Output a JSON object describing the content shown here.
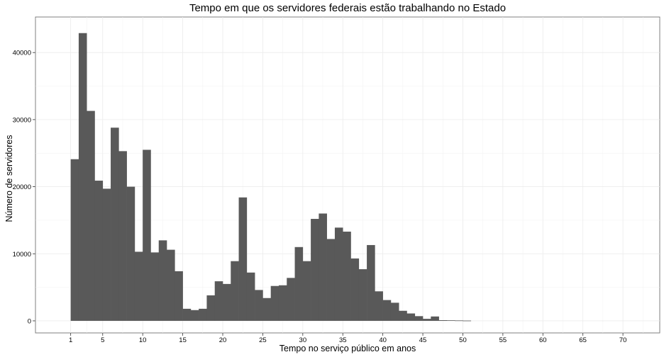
{
  "chart_data": {
    "type": "bar",
    "title": "Tempo em que os servidores federais estão trabalhando no Estado",
    "xlabel": "Tempo no serviço público em anos",
    "ylabel": "Número de servidores",
    "xlim": [
      -3.4,
      74.6
    ],
    "ylim": [
      -1800,
      45300
    ],
    "bin_width": 1,
    "x_ticks": [
      1,
      5,
      10,
      15,
      20,
      25,
      30,
      35,
      40,
      45,
      50,
      55,
      60,
      65,
      70
    ],
    "y_ticks": [
      0,
      10000,
      20000,
      30000,
      40000
    ],
    "grid": true,
    "bins": [
      {
        "x": 1,
        "y": 24100
      },
      {
        "x": 2,
        "y": 42900
      },
      {
        "x": 3,
        "y": 31300
      },
      {
        "x": 4,
        "y": 20900
      },
      {
        "x": 5,
        "y": 19700
      },
      {
        "x": 6,
        "y": 28800
      },
      {
        "x": 7,
        "y": 25300
      },
      {
        "x": 8,
        "y": 20000
      },
      {
        "x": 9,
        "y": 10300
      },
      {
        "x": 10,
        "y": 25500
      },
      {
        "x": 11,
        "y": 10200
      },
      {
        "x": 12,
        "y": 12000
      },
      {
        "x": 13,
        "y": 10600
      },
      {
        "x": 14,
        "y": 7400
      },
      {
        "x": 15,
        "y": 1800
      },
      {
        "x": 16,
        "y": 1600
      },
      {
        "x": 17,
        "y": 1800
      },
      {
        "x": 18,
        "y": 3800
      },
      {
        "x": 19,
        "y": 5900
      },
      {
        "x": 20,
        "y": 5500
      },
      {
        "x": 21,
        "y": 8900
      },
      {
        "x": 22,
        "y": 18400
      },
      {
        "x": 23,
        "y": 7200
      },
      {
        "x": 24,
        "y": 4600
      },
      {
        "x": 25,
        "y": 3400
      },
      {
        "x": 26,
        "y": 5200
      },
      {
        "x": 27,
        "y": 5300
      },
      {
        "x": 28,
        "y": 6400
      },
      {
        "x": 29,
        "y": 11000
      },
      {
        "x": 30,
        "y": 8900
      },
      {
        "x": 31,
        "y": 15200
      },
      {
        "x": 32,
        "y": 16000
      },
      {
        "x": 33,
        "y": 12200
      },
      {
        "x": 34,
        "y": 13900
      },
      {
        "x": 35,
        "y": 13300
      },
      {
        "x": 36,
        "y": 9300
      },
      {
        "x": 37,
        "y": 7700
      },
      {
        "x": 38,
        "y": 11300
      },
      {
        "x": 39,
        "y": 4400
      },
      {
        "x": 40,
        "y": 3100
      },
      {
        "x": 41,
        "y": 2700
      },
      {
        "x": 42,
        "y": 1500
      },
      {
        "x": 43,
        "y": 1100
      },
      {
        "x": 44,
        "y": 700
      },
      {
        "x": 45,
        "y": 300
      },
      {
        "x": 46,
        "y": 650
      },
      {
        "x": 47,
        "y": 100
      },
      {
        "x": 48,
        "y": 80
      },
      {
        "x": 49,
        "y": 60
      },
      {
        "x": 50,
        "y": 40
      }
    ],
    "bar_color": "#595959"
  }
}
